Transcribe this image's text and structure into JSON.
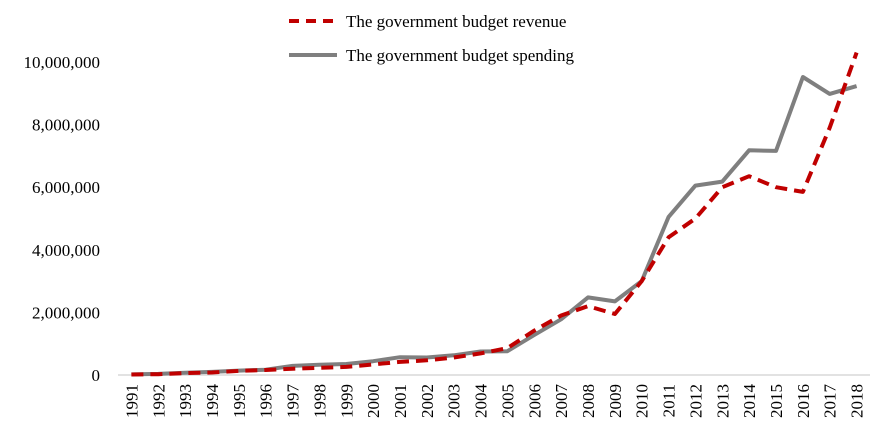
{
  "chart_data": {
    "type": "line",
    "title": "",
    "xlabel": "",
    "ylabel": "",
    "x": [
      "1991",
      "1992",
      "1993",
      "1994",
      "1995",
      "1996",
      "1997",
      "1998",
      "1999",
      "2000",
      "2001",
      "2002",
      "2003",
      "2004",
      "2005",
      "2006",
      "2007",
      "2008",
      "2009",
      "2010",
      "2011",
      "2012",
      "2013",
      "2014",
      "2015",
      "2016",
      "2017",
      "2018"
    ],
    "y_ticks": [
      "0",
      "2,000,000",
      "4,000,000",
      "6,000,000",
      "8,000,000",
      "10,000,000"
    ],
    "ylim": [
      0,
      10000000
    ],
    "grid": false,
    "legend_position": "top-center",
    "series": [
      {
        "name": "The government budget revenue",
        "color": "#c00000",
        "style": "dashed",
        "values": [
          15000,
          25000,
          60000,
          80000,
          130000,
          160000,
          200000,
          230000,
          260000,
          340000,
          420000,
          470000,
          560000,
          690000,
          860000,
          1420000,
          1900000,
          2200000,
          1950000,
          3000000,
          4400000,
          5000000,
          6000000,
          6350000,
          6000000,
          5850000,
          7900000,
          10300000
        ]
      },
      {
        "name": "The government budget spending",
        "color": "#7f7f7f",
        "style": "solid",
        "values": [
          20000,
          35000,
          70000,
          100000,
          140000,
          170000,
          290000,
          330000,
          350000,
          440000,
          570000,
          560000,
          630000,
          750000,
          760000,
          1280000,
          1780000,
          2480000,
          2350000,
          3000000,
          5050000,
          6050000,
          6180000,
          7180000,
          7160000,
          9520000,
          8980000,
          9230000
        ]
      }
    ]
  }
}
